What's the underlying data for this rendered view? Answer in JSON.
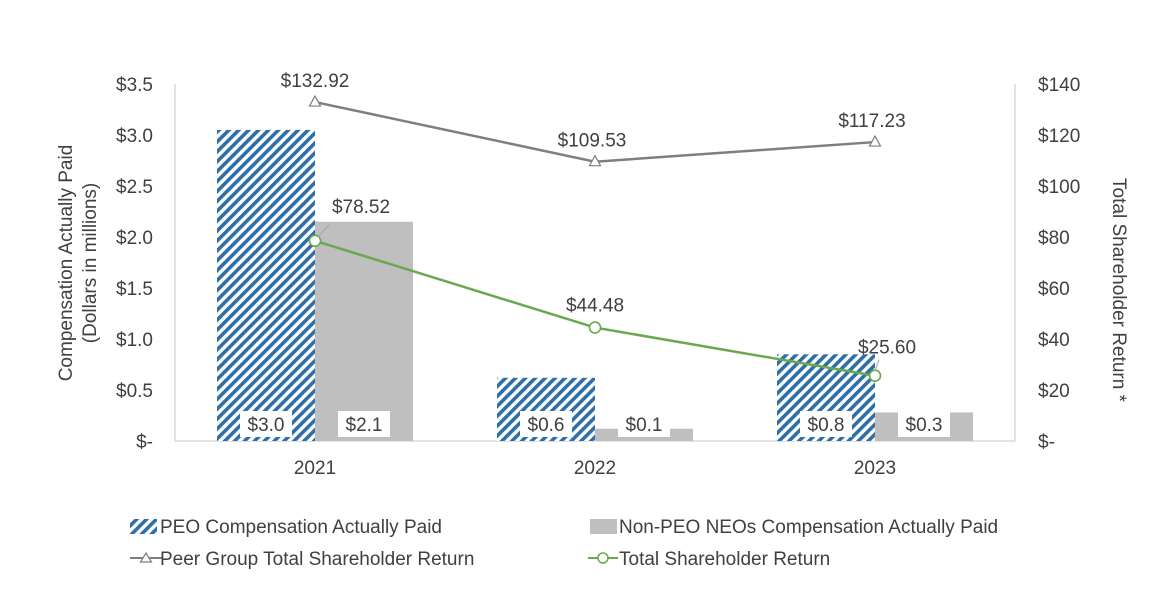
{
  "chart_data": {
    "type": "bar",
    "categories": [
      "2021",
      "2022",
      "2023"
    ],
    "left_axis": {
      "label_line1": "Compensation Actually Paid",
      "label_line2": "(Dollars in millions)",
      "ylim": [
        0,
        3.5
      ],
      "ticks": [
        {
          "value": 0,
          "label": "$-"
        },
        {
          "value": 0.5,
          "label": "$0.5"
        },
        {
          "value": 1.0,
          "label": "$1.0"
        },
        {
          "value": 1.5,
          "label": "$1.5"
        },
        {
          "value": 2.0,
          "label": "$2.0"
        },
        {
          "value": 2.5,
          "label": "$2.5"
        },
        {
          "value": 3.0,
          "label": "$3.0"
        },
        {
          "value": 3.5,
          "label": "$3.5"
        }
      ]
    },
    "right_axis": {
      "label": "Total Shareholder  Return *",
      "ylim": [
        0,
        140
      ],
      "ticks": [
        {
          "value": 0,
          "label": "$-"
        },
        {
          "value": 20,
          "label": "$20"
        },
        {
          "value": 40,
          "label": "$40"
        },
        {
          "value": 60,
          "label": "$60"
        },
        {
          "value": 80,
          "label": "$80"
        },
        {
          "value": 100,
          "label": "$100"
        },
        {
          "value": 120,
          "label": "$120"
        },
        {
          "value": 140,
          "label": "$140"
        }
      ]
    },
    "bar_series": [
      {
        "name": "PEO Compensation Actually Paid",
        "axis": "left",
        "values": [
          3.05,
          0.62,
          0.85
        ],
        "labels": [
          "$3.0",
          "$0.6",
          "$0.8"
        ],
        "color": "#2e6fa8",
        "pattern": "diagonal-hatch"
      },
      {
        "name": "Non-PEO NEOs Compensation Actually Paid",
        "axis": "left",
        "values": [
          2.15,
          0.12,
          0.28
        ],
        "labels": [
          "$2.1",
          "$0.1",
          "$0.3"
        ],
        "color": "#bfbfbf",
        "pattern": "solid"
      }
    ],
    "line_series": [
      {
        "name": "Peer Group Total Shareholder Return",
        "axis": "right",
        "values": [
          132.92,
          109.53,
          117.23
        ],
        "labels": [
          "$132.92",
          "$109.53",
          "$117.23"
        ],
        "color": "#7f7f7f",
        "marker": "triangle"
      },
      {
        "name": "Total Shareholder Return",
        "axis": "right",
        "values": [
          78.52,
          44.48,
          25.6
        ],
        "labels": [
          "$78.52",
          "$44.48",
          "$25.60"
        ],
        "color": "#6aa84f",
        "marker": "circle"
      }
    ],
    "legend_position": "bottom",
    "grid": false
  }
}
